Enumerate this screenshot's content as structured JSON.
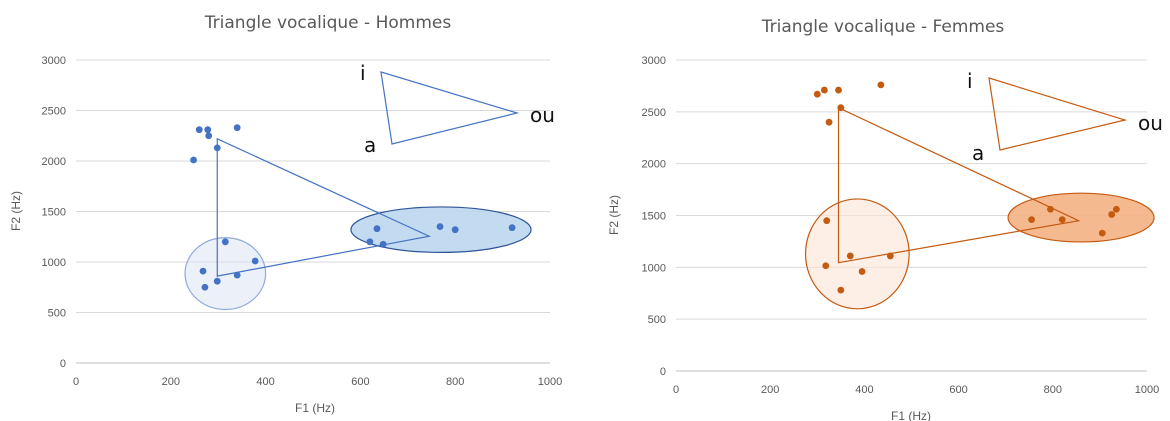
{
  "chart_data": [
    {
      "type": "scatter",
      "title": "Triangle vocalique - Hommes",
      "xlabel": "F1 (Hz)",
      "ylabel": "F2 (Hz)",
      "xlim": [
        0,
        1000
      ],
      "ylim": [
        0,
        3000
      ],
      "x_ticks": [
        "0",
        "200",
        "400",
        "600",
        "800",
        "1000"
      ],
      "y_ticks": [
        "0",
        "500",
        "1000",
        "1500",
        "2000",
        "2500",
        "3000"
      ],
      "color": "#4472c4",
      "points": [
        [
          248,
          2010
        ],
        [
          260,
          2310
        ],
        [
          278,
          2310
        ],
        [
          280,
          2250
        ],
        [
          340,
          2330
        ],
        [
          298,
          2130
        ],
        [
          268,
          910
        ],
        [
          272,
          750
        ],
        [
          298,
          810
        ],
        [
          315,
          1200
        ],
        [
          340,
          870
        ],
        [
          378,
          1010
        ],
        [
          620,
          1200
        ],
        [
          635,
          1330
        ],
        [
          648,
          1175
        ],
        [
          768,
          1350
        ],
        [
          800,
          1320
        ],
        [
          920,
          1340
        ]
      ],
      "triangle": [
        [
          298,
          2220
        ],
        [
          298,
          860
        ],
        [
          745,
          1255
        ]
      ],
      "ellipses": [
        {
          "cx": 315,
          "cy": 885,
          "rx": 85,
          "ry": 355,
          "fill": "#dae3f3",
          "stroke": "#8faadc",
          "opacity": 0.5
        },
        {
          "cx": 770,
          "cy": 1320,
          "rx": 190,
          "ry": 225,
          "fill": "#bdd7ee",
          "stroke": "#2f5597",
          "opacity": 0.9
        }
      ],
      "inset": {
        "labels": {
          "i": "i",
          "a": "a",
          "ou": "ou"
        }
      }
    },
    {
      "type": "scatter",
      "title": "Triangle vocalique - Femmes",
      "xlabel": "F1 (Hz)",
      "ylabel": "F2 (Hz)",
      "xlim": [
        0,
        1000
      ],
      "ylim": [
        0,
        3000
      ],
      "x_ticks": [
        "0",
        "200",
        "400",
        "600",
        "800",
        "1000"
      ],
      "y_ticks": [
        "0",
        "500",
        "1000",
        "1500",
        "2000",
        "2500",
        "3000"
      ],
      "color": "#c55a11",
      "points": [
        [
          300,
          2670
        ],
        [
          315,
          2710
        ],
        [
          345,
          2710
        ],
        [
          435,
          2760
        ],
        [
          350,
          2540
        ],
        [
          325,
          2400
        ],
        [
          320,
          1450
        ],
        [
          318,
          1015
        ],
        [
          370,
          1110
        ],
        [
          395,
          960
        ],
        [
          455,
          1110
        ],
        [
          350,
          780
        ],
        [
          755,
          1460
        ],
        [
          795,
          1560
        ],
        [
          820,
          1460
        ],
        [
          905,
          1330
        ],
        [
          925,
          1510
        ],
        [
          935,
          1560
        ]
      ],
      "triangle": [
        [
          345,
          2540
        ],
        [
          345,
          1045
        ],
        [
          855,
          1450
        ]
      ],
      "ellipses": [
        {
          "cx": 385,
          "cy": 1130,
          "rx": 110,
          "ry": 530,
          "fill": "#fbe5d6",
          "stroke": "#c55a11",
          "opacity": 0.6
        },
        {
          "cx": 860,
          "cy": 1480,
          "rx": 155,
          "ry": 235,
          "fill": "#f4b183",
          "stroke": "#c55a11",
          "opacity": 0.9
        }
      ],
      "inset": {
        "labels": {
          "i": "i",
          "a": "a",
          "ou": "ou"
        }
      }
    }
  ]
}
